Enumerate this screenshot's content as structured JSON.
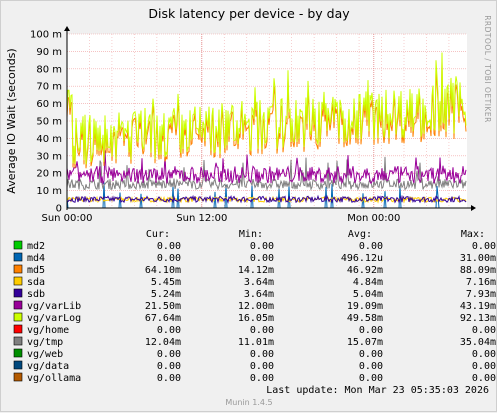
{
  "chart_data": {
    "type": "line",
    "title": "Disk latency per device - by day",
    "ylabel": "Average IO Wait (seconds)",
    "ylim": [
      0,
      0.1
    ],
    "yticks": [
      {
        "value": 0,
        "label": "0"
      },
      {
        "value": 0.01,
        "label": "10 m"
      },
      {
        "value": 0.02,
        "label": "20 m"
      },
      {
        "value": 0.03,
        "label": "30 m"
      },
      {
        "value": 0.04,
        "label": "40 m"
      },
      {
        "value": 0.05,
        "label": "50 m"
      },
      {
        "value": 0.06,
        "label": "60 m"
      },
      {
        "value": 0.07,
        "label": "70 m"
      },
      {
        "value": 0.08,
        "label": "80 m"
      },
      {
        "value": 0.09,
        "label": "90 m"
      },
      {
        "value": 0.1,
        "label": "100 m"
      }
    ],
    "xticks": [
      {
        "label": "Sun 00:00",
        "frac": 0.0
      },
      {
        "label": "Sun 12:00",
        "frac": 0.337
      },
      {
        "label": "Mon 00:00",
        "frac": 0.767
      }
    ],
    "side_text": "RRDTOOL / TOBI OETIKER",
    "columns": [
      "Cur:",
      "Min:",
      "Avg:",
      "Max:"
    ],
    "series": [
      {
        "name": "md2",
        "color": "#00cc00",
        "cur": "0.00",
        "min": "0.00",
        "avg": "0.00",
        "max": "0.00"
      },
      {
        "name": "md4",
        "color": "#0066b3",
        "cur": "0.00",
        "min": "0.00",
        "avg": "496.12u",
        "max": "31.00m"
      },
      {
        "name": "md5",
        "color": "#ff8000",
        "cur": "64.10m",
        "min": "14.12m",
        "avg": "46.92m",
        "max": "88.09m"
      },
      {
        "name": "sda",
        "color": "#ffcc00",
        "cur": "5.45m",
        "min": "3.64m",
        "avg": "4.84m",
        "max": "7.16m"
      },
      {
        "name": "sdb",
        "color": "#330099",
        "cur": "5.24m",
        "min": "3.64m",
        "avg": "5.04m",
        "max": "7.93m"
      },
      {
        "name": "vg/varLib",
        "color": "#990099",
        "cur": "21.50m",
        "min": "12.00m",
        "avg": "19.09m",
        "max": "43.19m"
      },
      {
        "name": "vg/varLog",
        "color": "#ccff00",
        "cur": "67.64m",
        "min": "16.05m",
        "avg": "49.58m",
        "max": "92.13m"
      },
      {
        "name": "vg/home",
        "color": "#ff0000",
        "cur": "0.00",
        "min": "0.00",
        "avg": "0.00",
        "max": "0.00"
      },
      {
        "name": "vg/tmp",
        "color": "#808080",
        "cur": "12.04m",
        "min": "11.01m",
        "avg": "15.07m",
        "max": "35.04m"
      },
      {
        "name": "vg/web",
        "color": "#008f00",
        "cur": "0.00",
        "min": "0.00",
        "avg": "0.00",
        "max": "0.00"
      },
      {
        "name": "vg/data",
        "color": "#00487d",
        "cur": "0.00",
        "min": "0.00",
        "avg": "0.00",
        "max": "0.00"
      },
      {
        "name": "vg/ollama",
        "color": "#b35a00",
        "cur": "0.00",
        "min": "0.00",
        "avg": "0.00",
        "max": "0.00"
      }
    ],
    "last_update": "Last update:  Mon Mar 23 05:35:03 2026",
    "footer": "Munin 1.4.5"
  }
}
